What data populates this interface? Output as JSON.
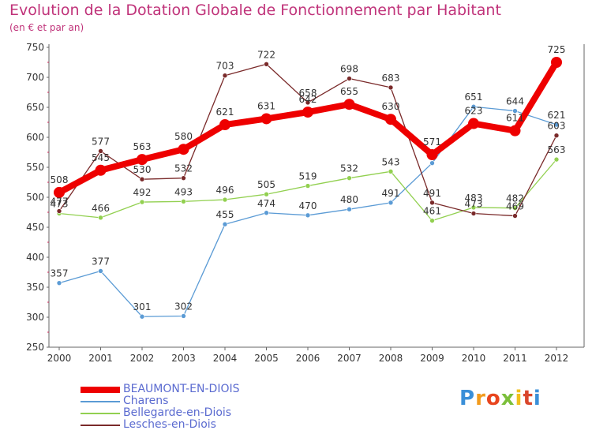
{
  "title": "Evolution de la Dotation Globale de Fonctionnement par Habitant",
  "subtitle": "(en € et par an)",
  "logo": {
    "text": "Proxiti",
    "colors": [
      "#3a8fd8",
      "#f29b1d",
      "#e8451e",
      "#7bbf3a",
      "#f2c01d",
      "#d9462b",
      "#3a8fd8"
    ]
  },
  "chart_data": {
    "type": "line",
    "x": [
      "2000",
      "2001",
      "2002",
      "2003",
      "2004",
      "2005",
      "2006",
      "2007",
      "2008",
      "2009",
      "2010",
      "2011",
      "2012"
    ],
    "ylim": [
      250,
      750
    ],
    "yticks": [
      250,
      300,
      350,
      400,
      450,
      500,
      550,
      600,
      650,
      700,
      750
    ],
    "grid": false,
    "legend_position": "bottom-left",
    "series": [
      {
        "name": "BEAUMONT-EN-DIOIS",
        "color": "#ee0000",
        "width": 8,
        "values": [
          508,
          545,
          563,
          580,
          621,
          631,
          642,
          655,
          630,
          571,
          623,
          611,
          725
        ],
        "labels": [
          "508",
          "545",
          "563",
          "580",
          "621",
          "631",
          "642",
          "655",
          "630",
          "571",
          "623",
          "611",
          "725"
        ]
      },
      {
        "name": "Charens",
        "color": "#5b9bd5",
        "width": 1.3,
        "values": [
          357,
          377,
          301,
          302,
          455,
          474,
          470,
          480,
          491,
          557,
          651,
          644,
          621
        ],
        "labels": [
          "357",
          "377",
          "301",
          "302",
          "455",
          "474",
          "470",
          "480",
          "491",
          "",
          "651",
          "644",
          "621"
        ]
      },
      {
        "name": "Bellegarde-en-Diois",
        "color": "#92d050",
        "width": 1.3,
        "values": [
          473,
          466,
          492,
          493,
          496,
          505,
          519,
          532,
          543,
          461,
          483,
          482,
          563
        ],
        "labels": [
          "473",
          "466",
          "492",
          "493",
          "496",
          "505",
          "519",
          "532",
          "543",
          "461",
          "483",
          "482",
          "563"
        ]
      },
      {
        "name": "Lesches-en-Diois",
        "color": "#7a2a2a",
        "width": 1.3,
        "values": [
          477,
          577,
          530,
          532,
          703,
          722,
          658,
          698,
          683,
          491,
          473,
          469,
          603
        ],
        "labels": [
          "477",
          "577",
          "530",
          "532",
          "703",
          "722",
          "658",
          "698",
          "683",
          "491",
          "473",
          "469",
          "603"
        ]
      }
    ]
  }
}
